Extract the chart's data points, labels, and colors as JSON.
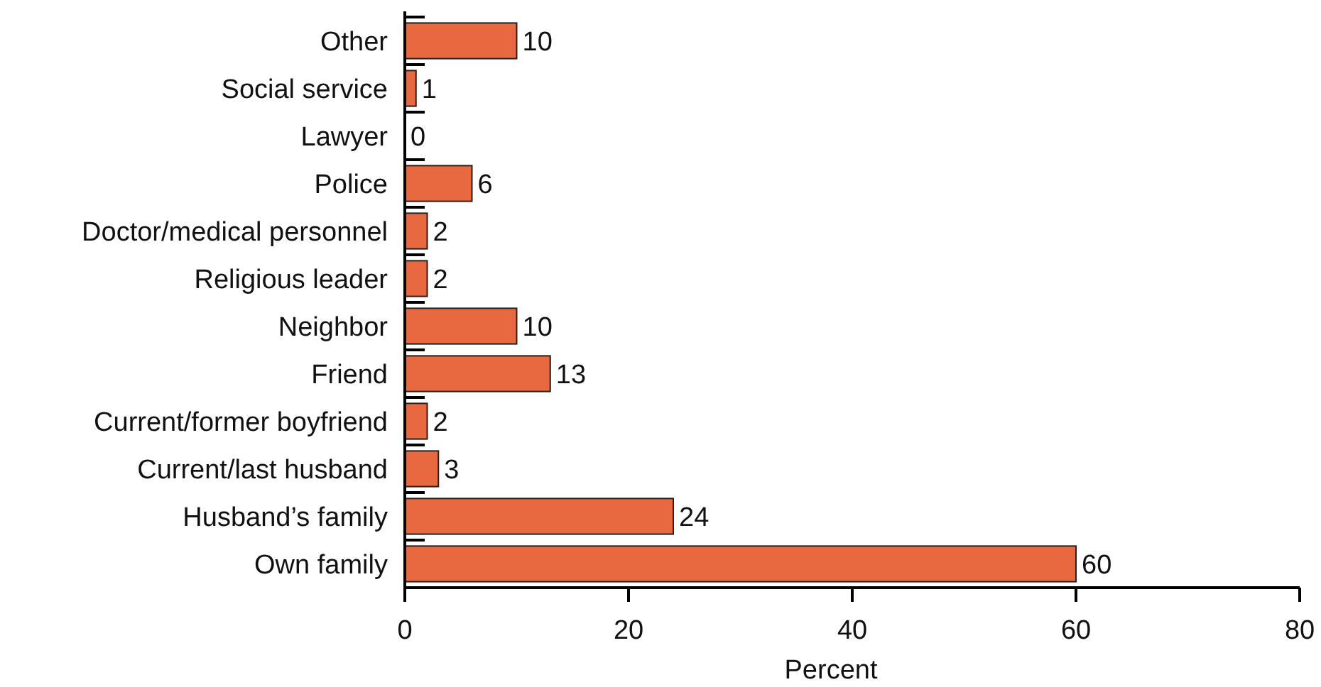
{
  "chart_data": {
    "type": "bar",
    "orientation": "horizontal",
    "xlabel": "Percent",
    "categories": [
      "Other",
      "Social service",
      "Lawyer",
      "Police",
      "Doctor/medical personnel",
      "Religious leader",
      "Neighbor",
      "Friend",
      "Current/former boyfriend",
      "Current/last husband",
      "Husband’s family",
      "Own family"
    ],
    "values": [
      10,
      1,
      0,
      6,
      2,
      2,
      10,
      13,
      2,
      3,
      24,
      60
    ],
    "color": "#e8683f",
    "xlim": [
      0,
      80
    ],
    "xticks": [
      0,
      20,
      40,
      60,
      80
    ],
    "data_labels": true
  }
}
